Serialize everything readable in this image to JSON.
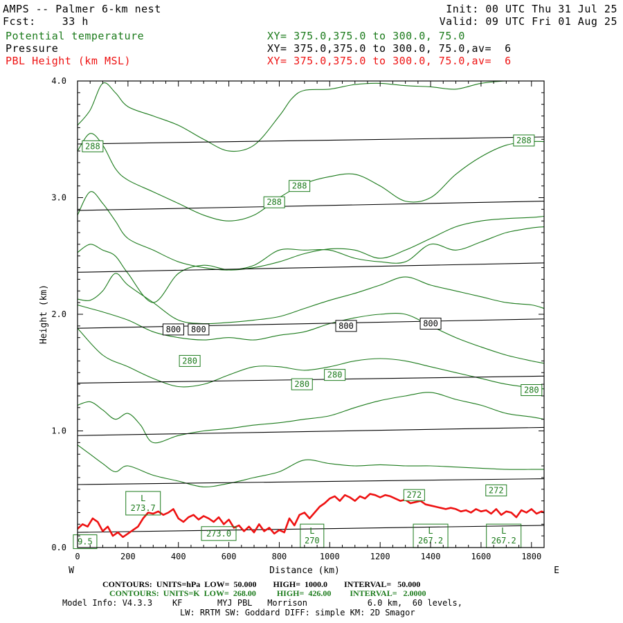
{
  "header": {
    "title": "AMPS -- Palmer 6-km nest",
    "forecast": "Fcst:    33 h",
    "init": "Init: 00 UTC Thu 31 Jul 25",
    "valid": "Valid: 09 UTC Fri 01 Aug 25",
    "field1_name": "Potential temperature",
    "field1_xy": "XY= 375.0,375.0 to 300.0, 75.0",
    "field2_name": "Pressure",
    "field2_xy": "XY= 375.0,375.0 to 300.0, 75.0,av=  6",
    "field3_name": "PBL Height (km MSL)",
    "field3_xy": "XY= 375.0,375.0 to 300.0, 75.0,av=  6"
  },
  "footer": {
    "line1": "CONTOURS:  UNITS=hPa  LOW=  50.000        HIGH=  1000.0        INTERVAL=   50.000",
    "line2": "CONTOURS:  UNITS=K  LOW=  268.00          HIGH=  426.00         INTERVAL=   2.0000",
    "line3": "Model Info: V4.3.3    KF       MYJ PBL   Morrison            6.0 km,  60 levels,",
    "line4": "LW: RRTM SW: Goddard DIFF: simple KM: 2D Smagor"
  },
  "colors": {
    "theta": "#1a7a1a",
    "pressure": "#000000",
    "pbl": "#ee1111"
  },
  "chart_data": {
    "type": "line",
    "xlabel": "Distance (km)",
    "ylabel": "Height (km)",
    "xlim": [
      0,
      1850
    ],
    "ylim": [
      0,
      4.0
    ],
    "x_ticks": [
      0,
      200,
      400,
      600,
      800,
      1000,
      1200,
      1400,
      1600,
      1800
    ],
    "y_ticks": [
      0.0,
      1.0,
      2.0,
      3.0,
      4.0
    ],
    "y_tick_labels": [
      "0.0",
      "1.0",
      "2.0",
      "3.0",
      "4.0"
    ],
    "left_label": "W",
    "right_label": "E",
    "pressure_lines": [
      {
        "x": [
          0,
          1850
        ],
        "y": [
          0.13,
          0.19
        ]
      },
      {
        "x": [
          0,
          1850
        ],
        "y": [
          0.54,
          0.59
        ]
      },
      {
        "x": [
          0,
          1850
        ],
        "y": [
          0.96,
          1.03
        ]
      },
      {
        "x": [
          0,
          1850
        ],
        "y": [
          1.41,
          1.47
        ]
      },
      {
        "x": [
          0,
          1850
        ],
        "y": [
          1.88,
          1.96
        ]
      },
      {
        "x": [
          0,
          1850
        ],
        "y": [
          2.36,
          2.44
        ]
      },
      {
        "x": [
          0,
          1850
        ],
        "y": [
          2.89,
          2.97
        ]
      },
      {
        "x": [
          0,
          1850
        ],
        "y": [
          3.46,
          3.52
        ]
      }
    ],
    "pressure_labels": [
      {
        "text": "800",
        "x": 380,
        "y": 1.87
      },
      {
        "text": "800",
        "x": 480,
        "y": 1.87
      },
      {
        "text": "800",
        "x": 1065,
        "y": 1.9
      },
      {
        "text": "800",
        "x": 1400,
        "y": 1.92
      }
    ],
    "theta_lines": [
      {
        "x": [
          0,
          50,
          100,
          150,
          200,
          300,
          400,
          500,
          600,
          700,
          800,
          900,
          1000,
          1100,
          1200,
          1300,
          1400,
          1500,
          1600,
          1700,
          1800,
          1850
        ],
        "y": [
          0.88,
          0.8,
          0.72,
          0.65,
          0.7,
          0.62,
          0.57,
          0.52,
          0.55,
          0.6,
          0.65,
          0.75,
          0.72,
          0.7,
          0.71,
          0.7,
          0.7,
          0.69,
          0.68,
          0.67,
          0.67,
          0.67
        ]
      },
      {
        "x": [
          0,
          50,
          100,
          150,
          200,
          250,
          300,
          400,
          500,
          600,
          700,
          800,
          900,
          1000,
          1100,
          1200,
          1300,
          1400,
          1500,
          1600,
          1700,
          1800,
          1850
        ],
        "y": [
          1.22,
          1.25,
          1.18,
          1.1,
          1.15,
          1.05,
          0.9,
          0.96,
          1.0,
          1.02,
          1.05,
          1.07,
          1.1,
          1.13,
          1.2,
          1.26,
          1.3,
          1.33,
          1.27,
          1.22,
          1.15,
          1.12,
          1.1
        ]
      },
      {
        "x": [
          0,
          100,
          200,
          300,
          400,
          500,
          600,
          700,
          800,
          900,
          1000,
          1100,
          1200,
          1300,
          1400,
          1500,
          1600,
          1700,
          1800,
          1850
        ],
        "y": [
          1.88,
          1.65,
          1.55,
          1.45,
          1.38,
          1.4,
          1.48,
          1.55,
          1.55,
          1.52,
          1.55,
          1.6,
          1.62,
          1.6,
          1.55,
          1.5,
          1.45,
          1.4,
          1.37,
          1.36
        ]
      },
      {
        "x": [
          0,
          50,
          100,
          200,
          300,
          400,
          500,
          600,
          700,
          800,
          900,
          1000,
          1100,
          1200,
          1300,
          1400,
          1500,
          1600,
          1700,
          1800,
          1850
        ],
        "y": [
          2.08,
          2.05,
          2.02,
          1.95,
          1.85,
          1.8,
          1.78,
          1.8,
          1.78,
          1.82,
          1.85,
          1.92,
          1.97,
          2.0,
          2.0,
          1.9,
          1.8,
          1.72,
          1.65,
          1.6,
          1.58
        ]
      },
      {
        "x": [
          0,
          50,
          100,
          150,
          200,
          300,
          400,
          500,
          600,
          700,
          800,
          900,
          1000,
          1100,
          1200,
          1300,
          1400,
          1500,
          1600,
          1700,
          1800,
          1850
        ],
        "y": [
          2.13,
          2.12,
          2.2,
          2.35,
          2.25,
          2.1,
          1.95,
          1.92,
          1.93,
          1.95,
          1.98,
          2.05,
          2.12,
          2.18,
          2.25,
          2.32,
          2.25,
          2.2,
          2.15,
          2.1,
          2.08,
          2.05
        ]
      },
      {
        "x": [
          0,
          50,
          100,
          150,
          200,
          300,
          400,
          500,
          600,
          700,
          800,
          900,
          1000,
          1100,
          1200,
          1300,
          1400,
          1500,
          1600,
          1700,
          1800,
          1850
        ],
        "y": [
          2.53,
          2.6,
          2.55,
          2.5,
          2.35,
          2.1,
          2.35,
          2.42,
          2.38,
          2.4,
          2.45,
          2.52,
          2.56,
          2.55,
          2.48,
          2.55,
          2.65,
          2.75,
          2.8,
          2.82,
          2.83,
          2.84
        ]
      },
      {
        "x": [
          0,
          50,
          100,
          150,
          200,
          300,
          400,
          500,
          600,
          700,
          800,
          900,
          1000,
          1100,
          1200,
          1300,
          1400,
          1500,
          1600,
          1700,
          1800,
          1850
        ],
        "y": [
          2.85,
          3.05,
          2.95,
          2.8,
          2.65,
          2.55,
          2.45,
          2.4,
          2.38,
          2.42,
          2.55,
          2.55,
          2.55,
          2.48,
          2.45,
          2.45,
          2.6,
          2.55,
          2.62,
          2.7,
          2.74,
          2.75
        ]
      },
      {
        "x": [
          0,
          50,
          100,
          150,
          200,
          300,
          400,
          500,
          600,
          700,
          800,
          900,
          1000,
          1100,
          1200,
          1300,
          1400,
          1500,
          1600,
          1700,
          1800,
          1850
        ],
        "y": [
          3.4,
          3.55,
          3.45,
          3.25,
          3.15,
          3.05,
          2.95,
          2.85,
          2.8,
          2.85,
          3.0,
          3.12,
          3.18,
          3.2,
          3.1,
          2.97,
          3.0,
          3.2,
          3.35,
          3.45,
          3.48,
          3.48
        ]
      },
      {
        "x": [
          0,
          50,
          100,
          150,
          200,
          300,
          400,
          500,
          600,
          700,
          800,
          850,
          900,
          1000,
          1100,
          1200,
          1300,
          1400,
          1500,
          1600,
          1700,
          1800,
          1850
        ],
        "y": [
          3.62,
          3.75,
          3.98,
          3.9,
          3.78,
          3.7,
          3.62,
          3.5,
          3.4,
          3.45,
          3.7,
          3.85,
          3.92,
          3.93,
          3.97,
          3.98,
          3.96,
          3.95,
          3.93,
          3.98,
          4.0,
          4.0,
          4.0
        ]
      }
    ],
    "theta_labels": [
      {
        "text": "288",
        "x": 60,
        "y": 3.44
      },
      {
        "text": "288",
        "x": 1770,
        "y": 3.49
      },
      {
        "text": "288",
        "x": 880,
        "y": 3.1
      },
      {
        "text": "288",
        "x": 780,
        "y": 2.96
      },
      {
        "text": "280",
        "x": 445,
        "y": 1.6
      },
      {
        "text": "280",
        "x": 890,
        "y": 1.4
      },
      {
        "text": "280",
        "x": 1020,
        "y": 1.48
      },
      {
        "text": "280",
        "x": 1800,
        "y": 1.35
      },
      {
        "text": "272",
        "x": 1335,
        "y": 0.45
      },
      {
        "text": "272",
        "x": 1660,
        "y": 0.49
      }
    ],
    "min_labels": [
      {
        "text": "L\n273.7",
        "x": 260,
        "y": 0.38
      },
      {
        "text": "L\n270",
        "x": 930,
        "y": 0.1
      },
      {
        "text": "L\n267.2",
        "x": 1400,
        "y": 0.1
      },
      {
        "text": "L\n267.2",
        "x": 1690,
        "y": 0.1
      },
      {
        "text": "273.0",
        "x": 560,
        "y": 0.12
      },
      {
        "text": "9.5",
        "x": 30,
        "y": 0.05
      }
    ],
    "pbl_height": {
      "name": "PBL Height (km MSL)",
      "x": [
        0,
        20,
        40,
        60,
        80,
        100,
        120,
        140,
        160,
        180,
        200,
        220,
        240,
        260,
        280,
        300,
        320,
        340,
        360,
        380,
        400,
        420,
        440,
        460,
        480,
        500,
        520,
        540,
        560,
        580,
        600,
        620,
        640,
        660,
        680,
        700,
        720,
        740,
        760,
        780,
        800,
        820,
        840,
        860,
        880,
        900,
        920,
        940,
        960,
        980,
        1000,
        1020,
        1040,
        1060,
        1080,
        1100,
        1120,
        1140,
        1160,
        1180,
        1200,
        1220,
        1240,
        1260,
        1280,
        1300,
        1320,
        1340,
        1360,
        1380,
        1400,
        1420,
        1440,
        1460,
        1480,
        1500,
        1520,
        1540,
        1560,
        1580,
        1600,
        1620,
        1640,
        1660,
        1680,
        1700,
        1720,
        1740,
        1760,
        1780,
        1800,
        1820,
        1840,
        1850
      ],
      "y": [
        0.16,
        0.2,
        0.18,
        0.25,
        0.22,
        0.14,
        0.18,
        0.1,
        0.13,
        0.09,
        0.12,
        0.15,
        0.18,
        0.25,
        0.3,
        0.29,
        0.31,
        0.28,
        0.3,
        0.33,
        0.25,
        0.22,
        0.26,
        0.28,
        0.24,
        0.27,
        0.25,
        0.22,
        0.26,
        0.2,
        0.24,
        0.17,
        0.19,
        0.14,
        0.18,
        0.13,
        0.2,
        0.14,
        0.17,
        0.12,
        0.15,
        0.13,
        0.25,
        0.19,
        0.28,
        0.3,
        0.25,
        0.3,
        0.35,
        0.38,
        0.42,
        0.44,
        0.4,
        0.45,
        0.43,
        0.4,
        0.44,
        0.42,
        0.46,
        0.45,
        0.43,
        0.45,
        0.44,
        0.42,
        0.4,
        0.41,
        0.38,
        0.39,
        0.4,
        0.37,
        0.36,
        0.35,
        0.34,
        0.33,
        0.34,
        0.33,
        0.31,
        0.32,
        0.3,
        0.33,
        0.31,
        0.32,
        0.29,
        0.33,
        0.28,
        0.31,
        0.3,
        0.26,
        0.32,
        0.3,
        0.33,
        0.29,
        0.31,
        0.3
      ]
    }
  }
}
